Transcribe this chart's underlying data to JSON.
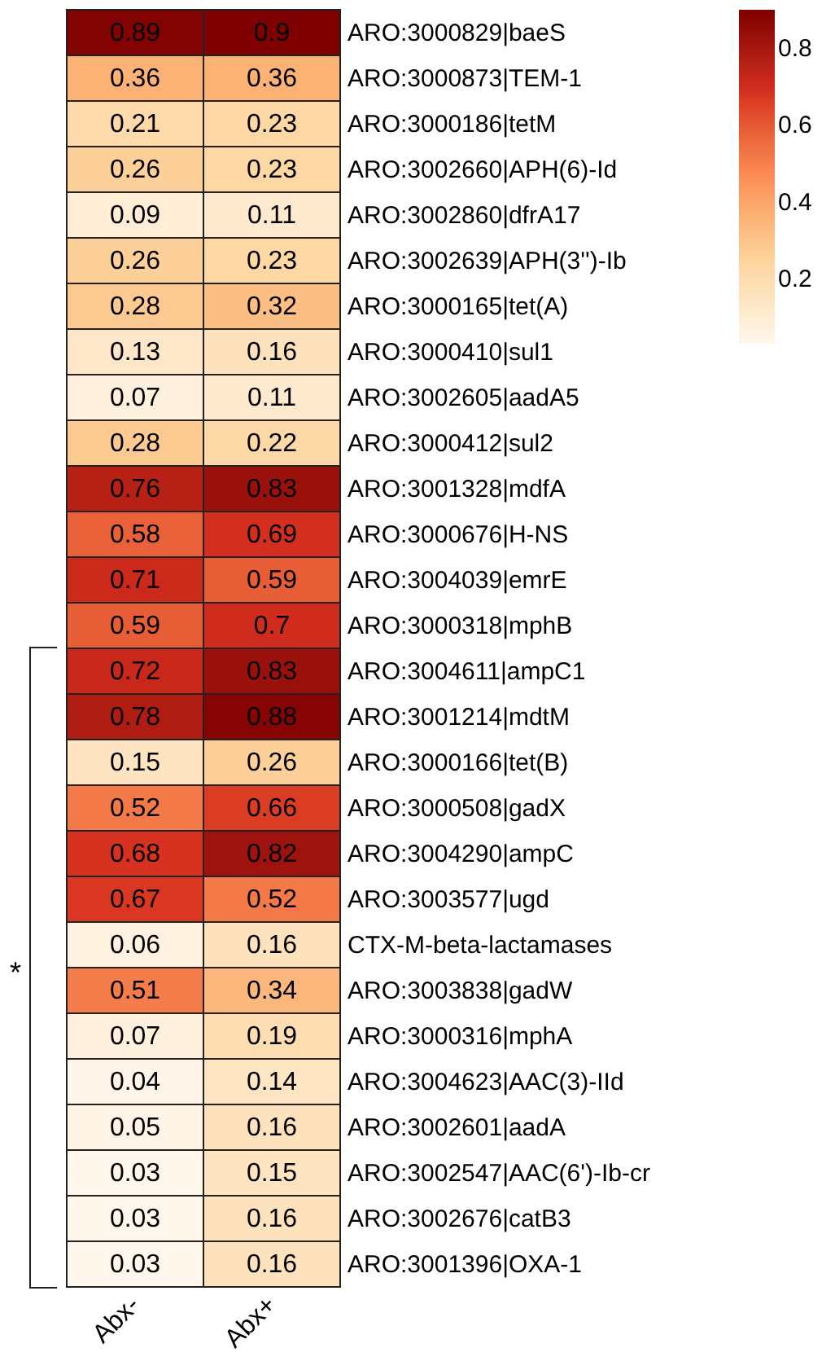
{
  "chart_data": {
    "type": "heatmap",
    "categories": [
      "Abx-",
      "Abx+"
    ],
    "y_categories": [
      "ARO:3000829|baeS",
      "ARO:3000873|TEM-1",
      "ARO:3000186|tetM",
      "ARO:3002660|APH(6)-Id",
      "ARO:3002860|dfrA17",
      "ARO:3002639|APH(3'')-Ib",
      "ARO:3000165|tet(A)",
      "ARO:3000410|sul1",
      "ARO:3002605|aadA5",
      "ARO:3000412|sul2",
      "ARO:3001328|mdfA",
      "ARO:3000676|H-NS",
      "ARO:3004039|emrE",
      "ARO:3000318|mphB",
      "ARO:3004611|ampC1",
      "ARO:3001214|mdtM",
      "ARO:3000166|tet(B)",
      "ARO:3000508|gadX",
      "ARO:3004290|ampC",
      "ARO:3003577|ugd",
      "CTX-M-beta-lactamases",
      "ARO:3003838|gadW",
      "ARO:3000316|mphA",
      "ARO:3004623|AAC(3)-IId",
      "ARO:3002601|aadA",
      "ARO:3002547|AAC(6')-Ib-cr",
      "ARO:3002676|catB3",
      "ARO:3001396|OXA-1"
    ],
    "cells": [
      [
        0.89,
        0.9
      ],
      [
        0.36,
        0.36
      ],
      [
        0.21,
        0.23
      ],
      [
        0.26,
        0.23
      ],
      [
        0.09,
        0.11
      ],
      [
        0.26,
        0.23
      ],
      [
        0.28,
        0.32
      ],
      [
        0.13,
        0.16
      ],
      [
        0.07,
        0.11
      ],
      [
        0.28,
        0.22
      ],
      [
        0.76,
        0.83
      ],
      [
        0.58,
        0.69
      ],
      [
        0.71,
        0.59
      ],
      [
        0.59,
        0.7
      ],
      [
        0.72,
        0.83
      ],
      [
        0.78,
        0.88
      ],
      [
        0.15,
        0.26
      ],
      [
        0.52,
        0.66
      ],
      [
        0.68,
        0.82
      ],
      [
        0.67,
        0.52
      ],
      [
        0.06,
        0.16
      ],
      [
        0.51,
        0.34
      ],
      [
        0.07,
        0.19
      ],
      [
        0.04,
        0.14
      ],
      [
        0.05,
        0.16
      ],
      [
        0.03,
        0.15
      ],
      [
        0.03,
        0.16
      ],
      [
        0.03,
        0.16
      ]
    ],
    "data_labels": true,
    "clim": [
      0.03,
      0.9
    ],
    "cticks": [
      0.2,
      0.4,
      0.6,
      0.8
    ],
    "annotations": [
      "*"
    ]
  }
}
